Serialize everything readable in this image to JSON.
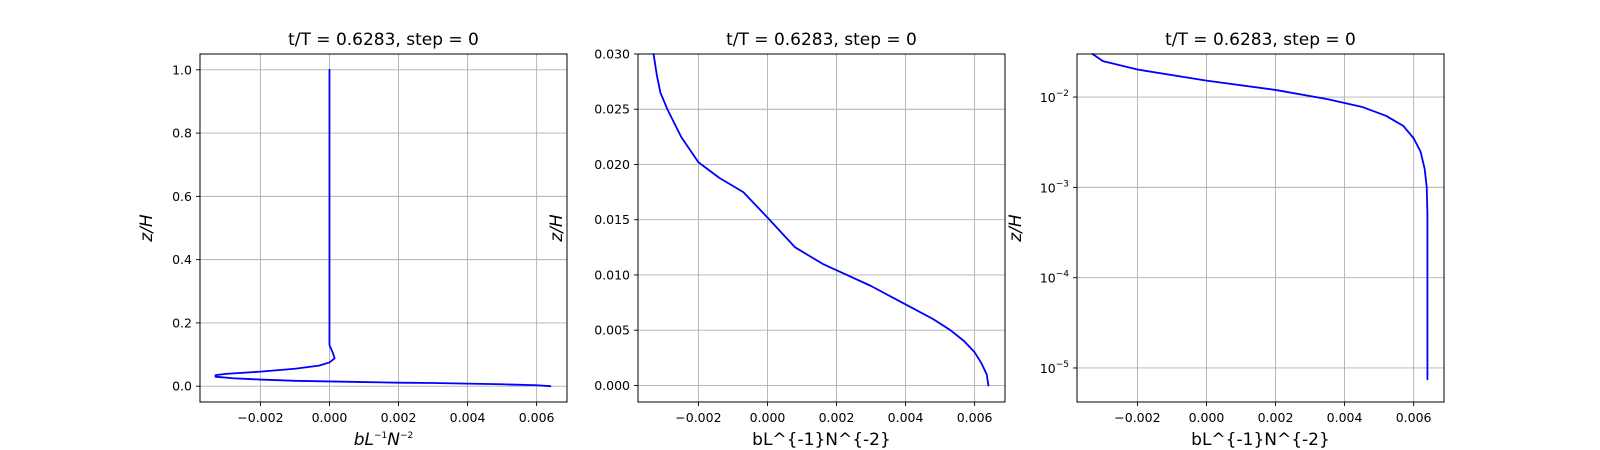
{
  "chart_data": [
    {
      "type": "line",
      "title": "t/T = 0.6283, step = 0",
      "xlabel_parts": [
        {
          "text": "bL",
          "sup": false,
          "italic": true
        },
        {
          "text": "−1",
          "sup": true,
          "italic": false
        },
        {
          "text": "N",
          "sup": false,
          "italic": true
        },
        {
          "text": "−2",
          "sup": true,
          "italic": false
        }
      ],
      "ylabel": "z/H",
      "xscale": "linear",
      "yscale": "linear",
      "xlim": [
        -0.00375,
        0.00688
      ],
      "ylim": [
        -0.05,
        1.05
      ],
      "xticks": [
        -0.002,
        0.0,
        0.002,
        0.004,
        0.006
      ],
      "xtick_labels": [
        "−0.002",
        "0.000",
        "0.002",
        "0.004",
        "0.006"
      ],
      "yticks": [
        0.0,
        0.2,
        0.4,
        0.6,
        0.8,
        1.0
      ],
      "ytick_labels": [
        "0.0",
        "0.2",
        "0.4",
        "0.6",
        "0.8",
        "1.0"
      ],
      "grid": true,
      "color": "#0000ff",
      "series": [
        {
          "x": [
            0.0064,
            0.006,
            0.005,
            0.004,
            0.003,
            0.002,
            0.001,
            0.0,
            -0.001,
            -0.002,
            -0.0028,
            -0.0033,
            -0.0033,
            -0.003,
            -0.002,
            -0.001,
            -0.0003,
            0.0,
            0.00015,
            0.0001,
            0.0,
            0.0,
            0.0,
            0.0
          ],
          "y": [
            0.0,
            0.003,
            0.006,
            0.008,
            0.01,
            0.011,
            0.013,
            0.015,
            0.017,
            0.021,
            0.025,
            0.03,
            0.035,
            0.039,
            0.046,
            0.055,
            0.065,
            0.075,
            0.088,
            0.105,
            0.13,
            0.2,
            0.5,
            1.0
          ]
        }
      ]
    },
    {
      "type": "line",
      "title": "t/T = 0.6283, step = 0",
      "xlabel": "bL^{-1}N^{-2}",
      "ylabel": "z/H",
      "xscale": "linear",
      "yscale": "linear",
      "xlim": [
        -0.00375,
        0.00688
      ],
      "ylim": [
        -0.0015,
        0.03
      ],
      "xticks": [
        -0.002,
        0.0,
        0.002,
        0.004,
        0.006
      ],
      "xtick_labels": [
        "−0.002",
        "0.000",
        "0.002",
        "0.004",
        "0.006"
      ],
      "yticks": [
        0.0,
        0.005,
        0.01,
        0.015,
        0.02,
        0.025,
        0.03
      ],
      "ytick_labels": [
        "0.000",
        "0.005",
        "0.010",
        "0.015",
        "0.020",
        "0.025",
        "0.030"
      ],
      "grid": true,
      "color": "#0000ff",
      "series": [
        {
          "x": [
            0.0064,
            0.00635,
            0.0062,
            0.006,
            0.0057,
            0.0053,
            0.0048,
            0.0042,
            0.0036,
            0.003,
            0.0023,
            0.0016,
            0.0008,
            0.0,
            -0.0007,
            -0.0014,
            -0.002,
            -0.0025,
            -0.0029,
            -0.0031,
            -0.0032,
            -0.00325,
            -0.0033
          ],
          "y": [
            0.0,
            0.001,
            0.002,
            0.003,
            0.004,
            0.005,
            0.006,
            0.007,
            0.008,
            0.009,
            0.01,
            0.011,
            0.0125,
            0.0152,
            0.0175,
            0.0188,
            0.0202,
            0.0225,
            0.025,
            0.0265,
            0.028,
            0.029,
            0.03
          ]
        }
      ]
    },
    {
      "type": "line",
      "title": "t/T = 0.6283, step = 0",
      "xlabel": "bL^{-1}N^{-2}",
      "ylabel": "z/H",
      "xscale": "linear",
      "yscale": "log",
      "xlim": [
        -0.00375,
        0.00688
      ],
      "ylim": [
        4.2e-06,
        0.03
      ],
      "xticks": [
        -0.002,
        0.0,
        0.002,
        0.004,
        0.006
      ],
      "xtick_labels": [
        "−0.002",
        "0.000",
        "0.002",
        "0.004",
        "0.006"
      ],
      "yticks": [
        1e-05,
        0.0001,
        0.001,
        0.01
      ],
      "ytick_labels": [
        [
          "10",
          "−5"
        ],
        [
          "10",
          "−4"
        ],
        [
          "10",
          "−3"
        ],
        [
          "10",
          "−2"
        ]
      ],
      "grid": true,
      "color": "#0000ff",
      "series": [
        {
          "x": [
            0.0064,
            0.0064,
            0.0064,
            0.0064,
            0.00638,
            0.00632,
            0.0062,
            0.006,
            0.0057,
            0.0052,
            0.0045,
            0.0035,
            0.002,
            0.0,
            -0.002,
            -0.003,
            -0.0033
          ],
          "y": [
            7.5e-06,
            5e-05,
            0.0002,
            0.0005,
            0.001,
            0.0016,
            0.0025,
            0.0035,
            0.0048,
            0.0062,
            0.0078,
            0.0095,
            0.012,
            0.0152,
            0.0202,
            0.025,
            0.03
          ]
        }
      ]
    }
  ]
}
